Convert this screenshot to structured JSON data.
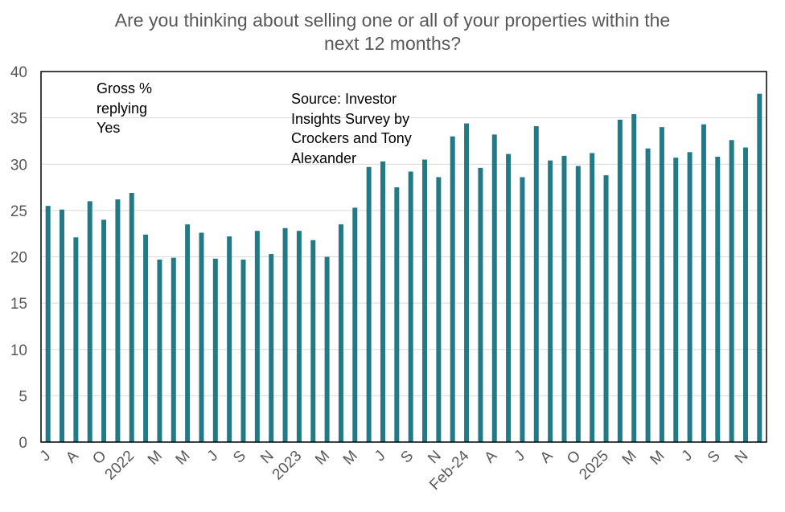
{
  "chart_data": {
    "type": "bar",
    "title": "Are you thinking about selling one or all of your properties within the next 12 months?",
    "title_lines": [
      "Are you thinking about selling one or all of your properties within the",
      "next 12 months?"
    ],
    "xlabel": "",
    "ylabel": "",
    "ylim": [
      0,
      40
    ],
    "yticks": [
      0,
      5,
      10,
      15,
      20,
      25,
      30,
      35,
      40
    ],
    "grid": true,
    "bar_color": "#237a87",
    "tick_labels": [
      "J",
      "A",
      "O",
      "2022",
      "M",
      "M",
      "J",
      "S",
      "N",
      "2023",
      "M",
      "M",
      "J",
      "S",
      "N",
      "Feb-24",
      "A",
      "J",
      "A",
      "O",
      "2025",
      "M",
      "M",
      "J",
      "S",
      "N"
    ],
    "tick_label_every": 2,
    "values": [
      25.5,
      25.1,
      22.1,
      26.0,
      24.0,
      26.2,
      26.9,
      22.4,
      19.7,
      19.9,
      23.5,
      22.6,
      19.8,
      22.2,
      19.7,
      22.8,
      20.3,
      23.1,
      22.8,
      21.8,
      20.0,
      23.5,
      25.3,
      29.7,
      30.3,
      27.5,
      29.2,
      30.5,
      28.6,
      33.0,
      34.4,
      29.6,
      33.2,
      31.1,
      28.6,
      34.1,
      30.4,
      30.9,
      29.8,
      31.2,
      28.8,
      34.8,
      35.4,
      31.7,
      34.0,
      30.7,
      31.3,
      34.3,
      30.8,
      32.6,
      31.8,
      37.6
    ],
    "annotations": [
      {
        "name": "series-label",
        "lines": [
          "Gross %",
          "replying",
          "Yes"
        ]
      },
      {
        "name": "source-note",
        "lines": [
          "Source: Investor",
          "Insights Survey by",
          "Crockers and Tony",
          "Alexander"
        ]
      }
    ]
  }
}
